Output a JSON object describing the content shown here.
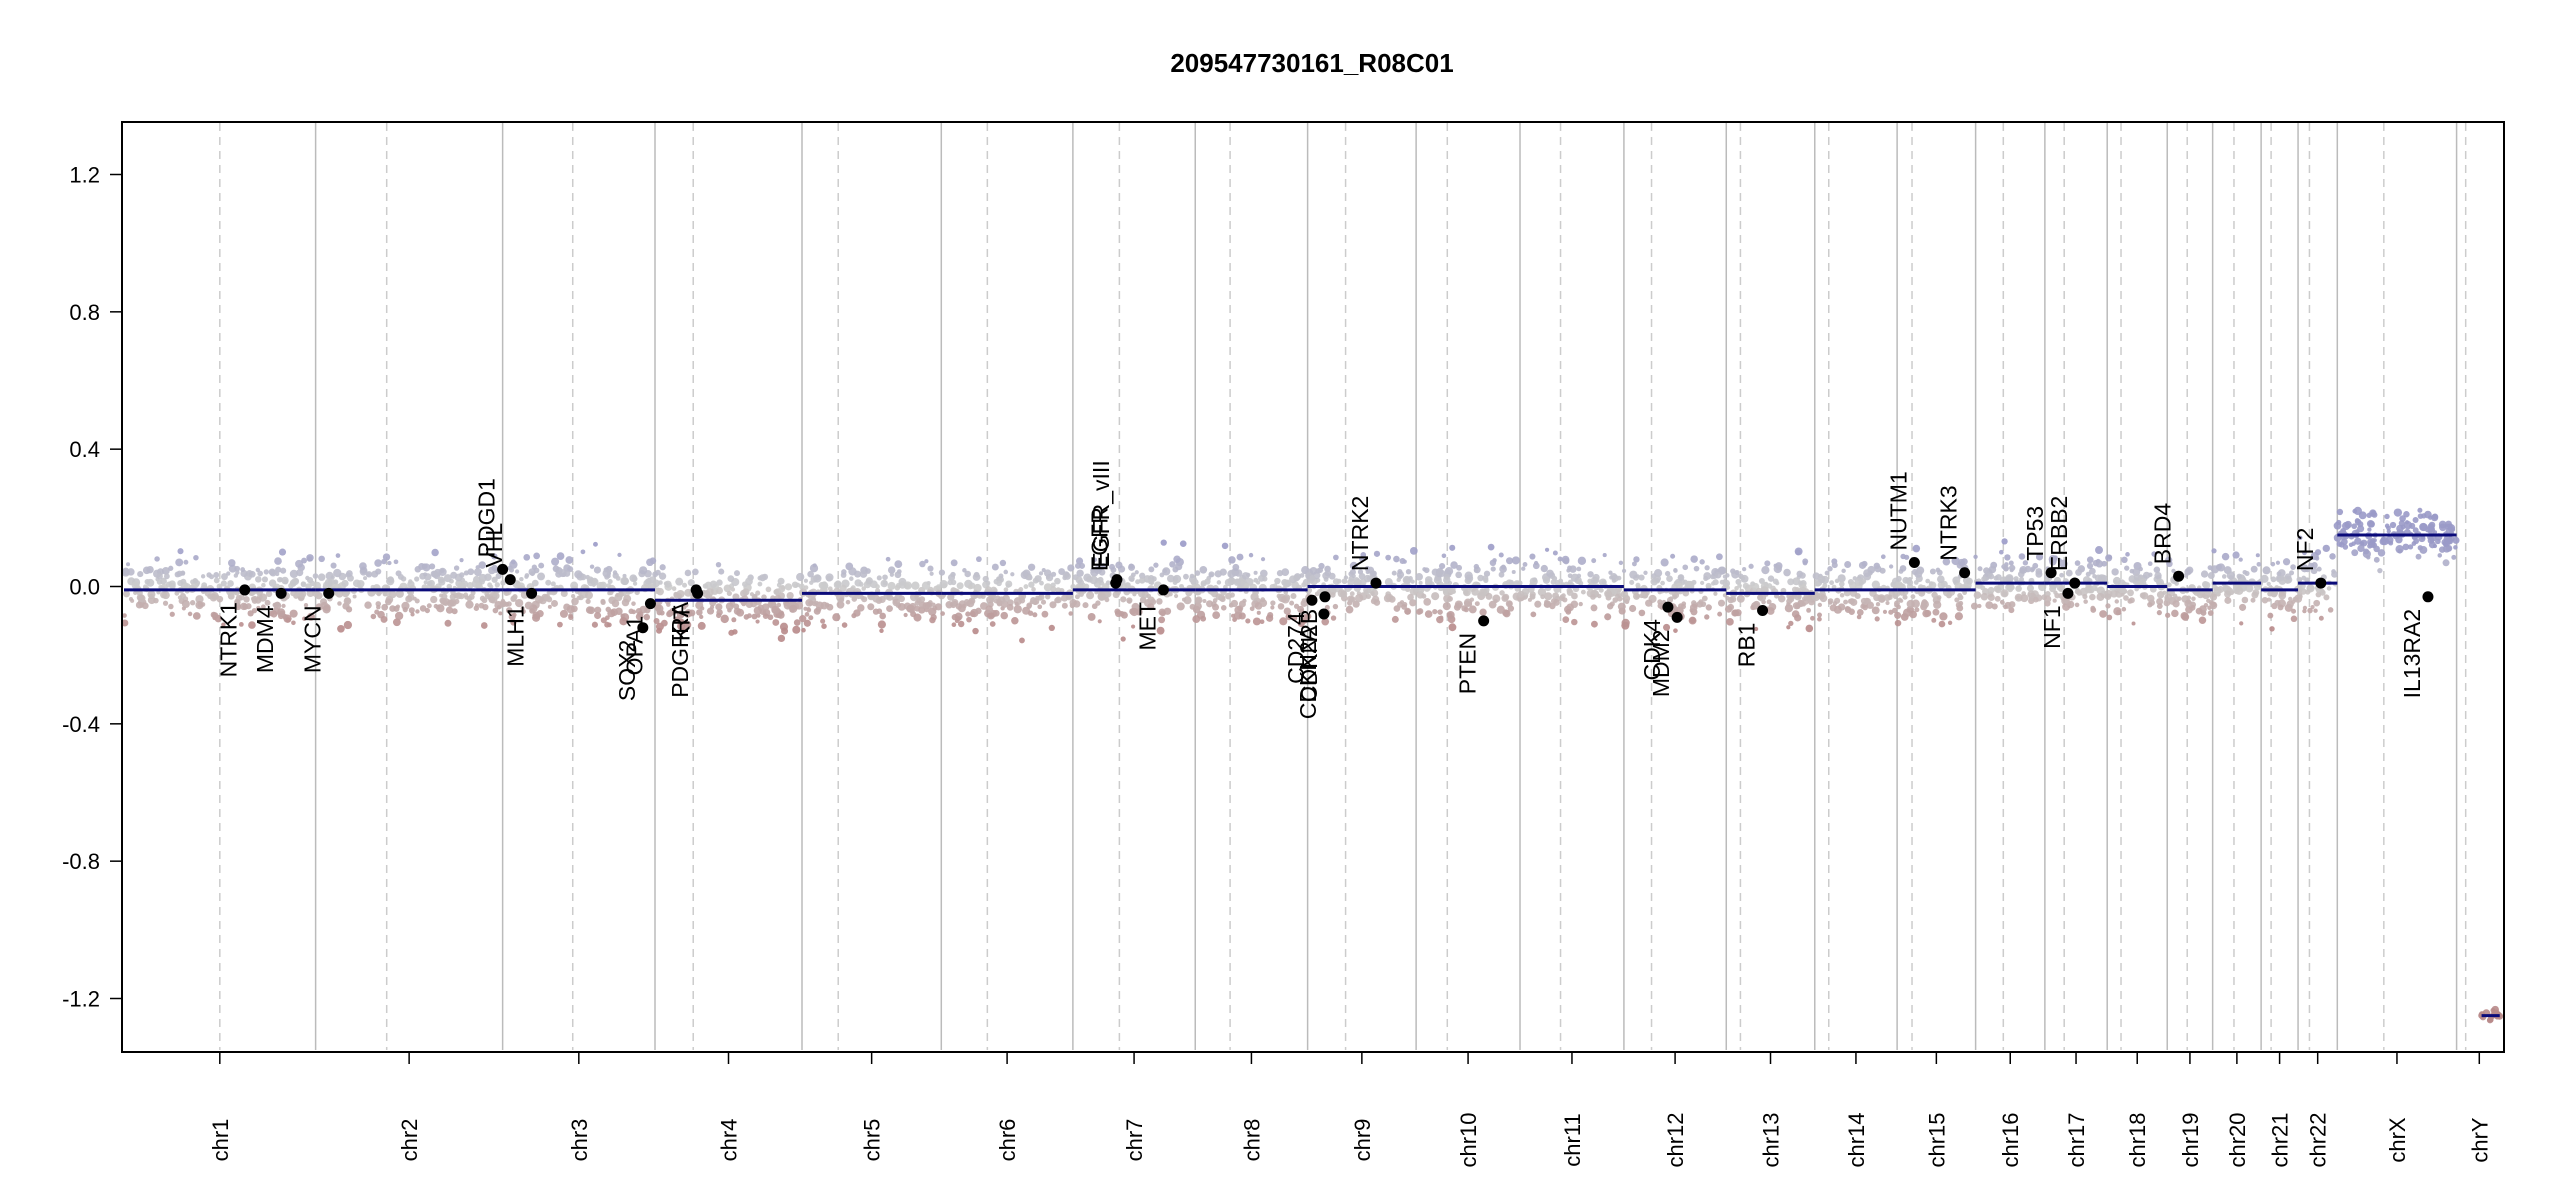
{
  "chart_data": {
    "type": "scatter",
    "title": "209547730161_R08C01",
    "xlabel": "",
    "ylabel": "",
    "ylim": [
      -1.35,
      1.35
    ],
    "yticks": [
      1.2,
      0.8,
      0.4,
      0.0,
      -0.4,
      -0.8,
      -1.2
    ],
    "ytick_labels": [
      "1.2",
      "0.8",
      "0.4",
      "0.0",
      "-0.4",
      "-0.8",
      "-1.2"
    ],
    "grid": false,
    "legend": "none",
    "colors": {
      "positive": "#9a9ac8",
      "neutral": "#cccccc",
      "negative": "#b88a8a",
      "segment": "#0b0b7a",
      "gene_point": "#000000",
      "chrom_boundary": "#bbbbbb",
      "centromere": "#cccccc",
      "outlier_low": "#cc3333"
    },
    "chromosomes": [
      {
        "name": "chr1",
        "size": 249,
        "centromere": 0.5,
        "segments": [
          {
            "from": 0,
            "to": 1,
            "value": -0.01
          }
        ],
        "spread": 0.1
      },
      {
        "name": "chr2",
        "size": 243,
        "centromere": 0.38,
        "segments": [
          {
            "from": 0,
            "to": 1,
            "value": -0.01
          }
        ],
        "spread": 0.1
      },
      {
        "name": "chr3",
        "size": 198,
        "centromere": 0.46,
        "segments": [
          {
            "from": 0,
            "to": 1,
            "value": -0.01
          }
        ],
        "spread": 0.1
      },
      {
        "name": "chr4",
        "size": 191,
        "centromere": 0.26,
        "segments": [
          {
            "from": 0,
            "to": 1,
            "value": -0.04
          }
        ],
        "spread": 0.1
      },
      {
        "name": "chr5",
        "size": 181,
        "centromere": 0.26,
        "segments": [
          {
            "from": 0,
            "to": 1,
            "value": -0.02
          }
        ],
        "spread": 0.1
      },
      {
        "name": "chr6",
        "size": 171,
        "centromere": 0.35,
        "segments": [
          {
            "from": 0,
            "to": 1,
            "value": -0.02
          }
        ],
        "spread": 0.1
      },
      {
        "name": "chr7",
        "size": 159,
        "centromere": 0.38,
        "segments": [
          {
            "from": 0,
            "to": 1,
            "value": -0.01
          }
        ],
        "spread": 0.1
      },
      {
        "name": "chr8",
        "size": 146,
        "centromere": 0.31,
        "segments": [
          {
            "from": 0,
            "to": 1,
            "value": -0.01
          }
        ],
        "spread": 0.1
      },
      {
        "name": "chr9",
        "size": 141,
        "centromere": 0.35,
        "segments": [
          {
            "from": 0,
            "to": 1,
            "value": 0.0
          }
        ],
        "spread": 0.1
      },
      {
        "name": "chr10",
        "size": 135,
        "centromere": 0.3,
        "segments": [
          {
            "from": 0,
            "to": 1,
            "value": 0.0
          }
        ],
        "spread": 0.1
      },
      {
        "name": "chr11",
        "size": 135,
        "centromere": 0.39,
        "segments": [
          {
            "from": 0,
            "to": 1,
            "value": 0.0
          }
        ],
        "spread": 0.1
      },
      {
        "name": "chr12",
        "size": 133,
        "centromere": 0.27,
        "segments": [
          {
            "from": 0,
            "to": 1,
            "value": -0.01
          }
        ],
        "spread": 0.1
      },
      {
        "name": "chr13",
        "size": 115,
        "centromere": 0.16,
        "segments": [
          {
            "from": 0,
            "to": 1,
            "value": -0.02
          }
        ],
        "spread": 0.1
      },
      {
        "name": "chr14",
        "size": 107,
        "centromere": 0.17,
        "segments": [
          {
            "from": 0,
            "to": 1,
            "value": -0.01
          }
        ],
        "spread": 0.1
      },
      {
        "name": "chr15",
        "size": 102,
        "centromere": 0.19,
        "segments": [
          {
            "from": 0,
            "to": 1,
            "value": -0.01
          }
        ],
        "spread": 0.1
      },
      {
        "name": "chr16",
        "size": 90,
        "centromere": 0.4,
        "segments": [
          {
            "from": 0,
            "to": 1,
            "value": 0.01
          }
        ],
        "spread": 0.1
      },
      {
        "name": "chr17",
        "size": 81,
        "centromere": 0.31,
        "segments": [
          {
            "from": 0,
            "to": 1,
            "value": 0.01
          }
        ],
        "spread": 0.1
      },
      {
        "name": "chr18",
        "size": 78,
        "centromere": 0.23,
        "segments": [
          {
            "from": 0,
            "to": 1,
            "value": 0.0
          }
        ],
        "spread": 0.1
      },
      {
        "name": "chr19",
        "size": 59,
        "centromere": 0.44,
        "segments": [
          {
            "from": 0,
            "to": 1,
            "value": -0.01
          }
        ],
        "spread": 0.1
      },
      {
        "name": "chr20",
        "size": 63,
        "centromere": 0.44,
        "segments": [
          {
            "from": 0,
            "to": 1,
            "value": 0.01
          }
        ],
        "spread": 0.1
      },
      {
        "name": "chr21",
        "size": 48,
        "centromere": 0.27,
        "segments": [
          {
            "from": 0,
            "to": 1,
            "value": -0.01
          }
        ],
        "spread": 0.1
      },
      {
        "name": "chr22",
        "size": 51,
        "centromere": 0.29,
        "segments": [
          {
            "from": 0,
            "to": 1,
            "value": 0.01
          }
        ],
        "spread": 0.1
      },
      {
        "name": "chrX",
        "size": 155,
        "centromere": 0.39,
        "segments": [
          {
            "from": 0,
            "to": 1,
            "value": 0.15
          }
        ],
        "spread": 0.08
      },
      {
        "name": "chrY",
        "size": 59,
        "centromere": 0.2,
        "segments": [
          {
            "from": 0.55,
            "to": 0.95,
            "value": -1.25
          }
        ],
        "spread": 0.02
      }
    ],
    "genes": [
      {
        "name": "NTRK1",
        "chrom": "chr1",
        "pos": 0.63,
        "value": -0.01,
        "label_side": "below"
      },
      {
        "name": "MDM4",
        "chrom": "chr1",
        "pos": 0.82,
        "value": -0.02,
        "label_side": "below"
      },
      {
        "name": "MYCN",
        "chrom": "chr2",
        "pos": 0.07,
        "value": -0.02,
        "label_side": "below"
      },
      {
        "name": "PDGD1",
        "chrom": "chr2",
        "pos": 1.0,
        "value": 0.05,
        "label_side": "above"
      },
      {
        "name": "VHL",
        "chrom": "chr3",
        "pos": 0.05,
        "value": 0.02,
        "label_side": "above"
      },
      {
        "name": "MLH1",
        "chrom": "chr3",
        "pos": 0.19,
        "value": -0.02,
        "label_side": "below"
      },
      {
        "name": "SOX2",
        "chrom": "chr3",
        "pos": 0.92,
        "value": -0.12,
        "label_side": "below"
      },
      {
        "name": "OPA1",
        "chrom": "chr3",
        "pos": 0.97,
        "value": -0.05,
        "label_side": "below"
      },
      {
        "name": "PDGFRA",
        "chrom": "chr4",
        "pos": 0.28,
        "value": -0.01,
        "label_side": "below"
      },
      {
        "name": "KIT",
        "chrom": "chr4",
        "pos": 0.29,
        "value": -0.02,
        "label_side": "below"
      },
      {
        "name": "EGFR_vIII",
        "chrom": "chr7",
        "pos": 0.36,
        "value": 0.02,
        "label_side": "above"
      },
      {
        "name": "EGFR",
        "chrom": "chr7",
        "pos": 0.35,
        "value": 0.01,
        "label_side": "above"
      },
      {
        "name": "MET",
        "chrom": "chr7",
        "pos": 0.74,
        "value": -0.01,
        "label_side": "below"
      },
      {
        "name": "CD274",
        "chrom": "chr9",
        "pos": 0.04,
        "value": -0.04,
        "label_side": "below"
      },
      {
        "name": "CDKN2A",
        "chrom": "chr9",
        "pos": 0.15,
        "value": -0.08,
        "label_side": "below"
      },
      {
        "name": "CDKN2B",
        "chrom": "chr9",
        "pos": 0.16,
        "value": -0.03,
        "label_side": "below"
      },
      {
        "name": "NTRK2",
        "chrom": "chr9",
        "pos": 0.63,
        "value": 0.01,
        "label_side": "above"
      },
      {
        "name": "PTEN",
        "chrom": "chr10",
        "pos": 0.65,
        "value": -0.1,
        "label_side": "below"
      },
      {
        "name": "CDK4",
        "chrom": "chr12",
        "pos": 0.43,
        "value": -0.06,
        "label_side": "below"
      },
      {
        "name": "MDM2",
        "chrom": "chr12",
        "pos": 0.52,
        "value": -0.09,
        "label_side": "below"
      },
      {
        "name": "RB1",
        "chrom": "chr13",
        "pos": 0.41,
        "value": -0.07,
        "label_side": "below"
      },
      {
        "name": "NUTM1",
        "chrom": "chr15",
        "pos": 0.22,
        "value": 0.07,
        "label_side": "above"
      },
      {
        "name": "NTRK3",
        "chrom": "chr15",
        "pos": 0.86,
        "value": 0.04,
        "label_side": "above"
      },
      {
        "name": "TP53",
        "chrom": "chr17",
        "pos": 0.1,
        "value": 0.04,
        "label_side": "above"
      },
      {
        "name": "NF1",
        "chrom": "chr17",
        "pos": 0.37,
        "value": -0.02,
        "label_side": "below"
      },
      {
        "name": "ERBB2",
        "chrom": "chr17",
        "pos": 0.48,
        "value": 0.01,
        "label_side": "above"
      },
      {
        "name": "BRD4",
        "chrom": "chr19",
        "pos": 0.25,
        "value": 0.03,
        "label_side": "above"
      },
      {
        "name": "NF2",
        "chrom": "chr22",
        "pos": 0.58,
        "value": 0.01,
        "label_side": "above"
      },
      {
        "name": "IL13RA2",
        "chrom": "chrX",
        "pos": 0.76,
        "value": -0.03,
        "label_side": "below"
      }
    ]
  }
}
